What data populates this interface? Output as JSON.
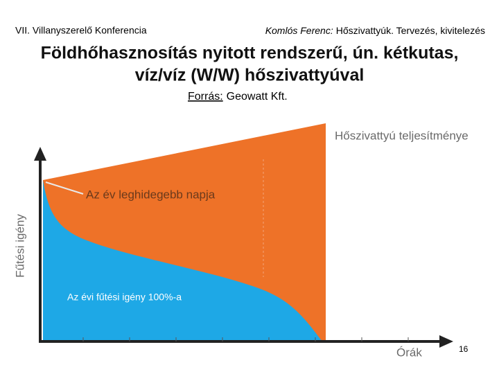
{
  "header": {
    "left": "VII. Villanyszerelő Konferencia",
    "right_author": "Komlós Ferenc:",
    "right_rest": "Hőszivattyúk. Tervezés, kivitelezés"
  },
  "title": [
    "Földhőhasznosítás nyitott rendszerű, ún. kétkutas,",
    "víz/víz (W/W) hőszivattyúval"
  ],
  "source": {
    "label": "Forrás:",
    "text": "Geowatt Kft."
  },
  "figure": {
    "curve_label": "Hőszivattyú teljesítménye",
    "coldest_day": "Az év leghidegebb napja",
    "y_axis": "Fűtési igény",
    "area_label": "Az évi fűtési igény 100%-a",
    "x_axis": "Órák"
  },
  "page_number": "16"
}
